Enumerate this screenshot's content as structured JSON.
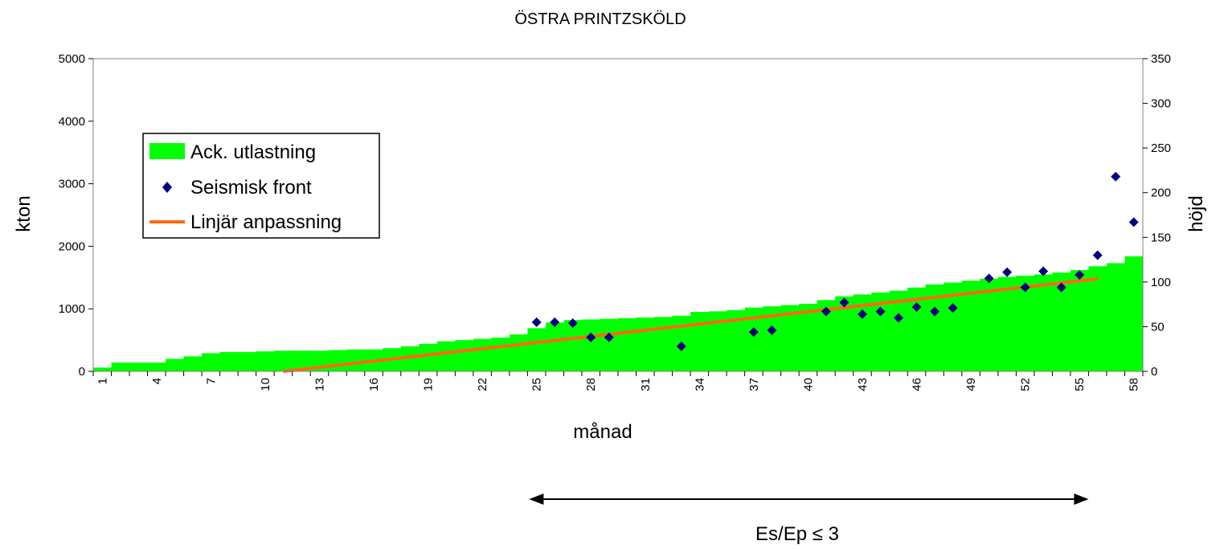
{
  "chart_data": {
    "type": "area",
    "title": "ÖSTRA PRINTZSKÖLD",
    "xlabel": "månad",
    "ylabel_left": "kton",
    "ylabel_right": "höjd",
    "ylim_left": [
      0,
      5000
    ],
    "ylim_right": [
      0,
      350
    ],
    "left_ticks": [
      "0",
      "1000",
      "2000",
      "3000",
      "4000",
      "5000"
    ],
    "right_ticks": [
      "0",
      "50",
      "100",
      "150",
      "200",
      "250",
      "300",
      "350"
    ],
    "x_tick_labels": [
      "1",
      "4",
      "7",
      "10",
      "13",
      "16",
      "19",
      "22",
      "25",
      "28",
      "31",
      "34",
      "37",
      "40",
      "43",
      "46",
      "49",
      "52",
      "55",
      "58"
    ],
    "grid": false,
    "legend_position": "left",
    "colors": {
      "area": "#00ff00",
      "points": "#000080",
      "fit": "#ff6a13"
    },
    "series": [
      {
        "name": "Ack. utlastning",
        "type": "area",
        "axis": "left",
        "x": [
          1,
          2,
          3,
          4,
          5,
          6,
          7,
          8,
          9,
          10,
          11,
          12,
          13,
          14,
          15,
          16,
          17,
          18,
          19,
          20,
          21,
          22,
          23,
          24,
          25,
          26,
          27,
          28,
          29,
          30,
          31,
          32,
          33,
          34,
          35,
          36,
          37,
          38,
          39,
          40,
          41,
          42,
          43,
          44,
          45,
          46,
          47,
          48,
          49,
          50,
          51,
          52,
          53,
          54,
          55,
          56,
          57,
          58
        ],
        "values": [
          60,
          140,
          140,
          140,
          200,
          240,
          290,
          310,
          310,
          320,
          330,
          330,
          330,
          340,
          350,
          350,
          370,
          400,
          440,
          480,
          500,
          520,
          540,
          590,
          690,
          780,
          820,
          830,
          840,
          850,
          860,
          870,
          890,
          950,
          960,
          980,
          1020,
          1040,
          1060,
          1080,
          1140,
          1200,
          1230,
          1260,
          1290,
          1340,
          1390,
          1420,
          1450,
          1480,
          1510,
          1530,
          1550,
          1580,
          1620,
          1680,
          1730,
          1840
        ]
      },
      {
        "name": "Seismisk front",
        "type": "scatter",
        "axis": "right",
        "x": [
          25,
          26,
          27,
          28,
          29,
          33,
          37,
          38,
          41,
          42,
          43,
          44,
          45,
          46,
          47,
          48,
          50,
          51,
          52,
          53,
          54,
          55,
          56,
          57,
          58
        ],
        "values": [
          55,
          55,
          54,
          38,
          38,
          28,
          44,
          46,
          67,
          77,
          64,
          67,
          60,
          72,
          67,
          71,
          104,
          111,
          94,
          112,
          94,
          108,
          130,
          218,
          167
        ]
      },
      {
        "name": "Linjär anpassning",
        "type": "line",
        "axis": "left",
        "x": [
          11,
          56
        ],
        "values": [
          0,
          1480
        ]
      }
    ],
    "annotation": {
      "text": "Es/Ep ≤ 3",
      "x_start": 25,
      "x_end": 55
    }
  }
}
